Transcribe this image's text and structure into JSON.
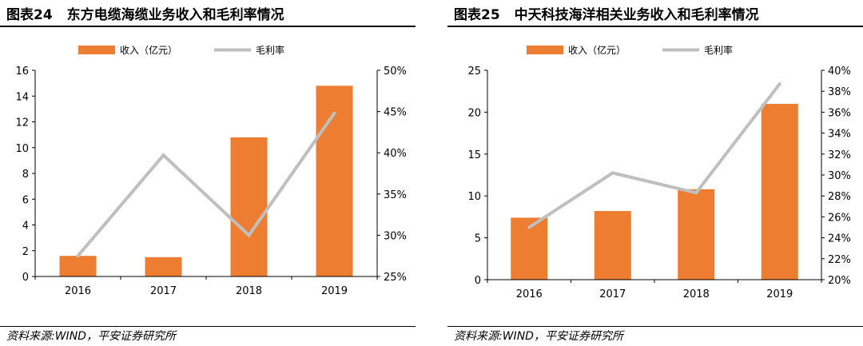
{
  "charts": [
    {
      "figure_label": "图表24",
      "title": "东方电缆海缆业务收入和毛利率情况",
      "source": "资料来源:WIND，平安证券研究所",
      "legend": {
        "bar": "收入（亿元）",
        "line": "毛利率"
      },
      "colors": {
        "bar": "#ED7D31",
        "line": "#BFBFBF"
      },
      "chart_data": {
        "type": "bar",
        "categories": [
          "2016",
          "2017",
          "2018",
          "2019"
        ],
        "series": [
          {
            "name": "收入（亿元）",
            "type": "bar",
            "axis": "left",
            "values": [
              1.6,
              1.5,
              10.8,
              14.8
            ]
          },
          {
            "name": "毛利率",
            "type": "line",
            "axis": "right",
            "values": [
              27.5,
              39.7,
              30.0,
              44.8
            ]
          }
        ],
        "ylim_left": [
          0,
          16
        ],
        "yticks_left": [
          "0",
          "2",
          "4",
          "6",
          "8",
          "10",
          "12",
          "14",
          "16"
        ],
        "ylim_right": [
          25,
          50
        ],
        "yticks_right": [
          "25%",
          "30%",
          "35%",
          "40%",
          "45%",
          "50%"
        ],
        "legend_position": "top",
        "grid": false
      }
    },
    {
      "figure_label": "图表25",
      "title": "中天科技海洋相关业务收入和毛利率情况",
      "source": "资料来源:WIND，平安证券研究所",
      "legend": {
        "bar": "收入（亿元）",
        "line": "毛利率"
      },
      "colors": {
        "bar": "#ED7D31",
        "line": "#BFBFBF"
      },
      "chart_data": {
        "type": "bar",
        "categories": [
          "2016",
          "2017",
          "2018",
          "2019"
        ],
        "series": [
          {
            "name": "收入（亿元）",
            "type": "bar",
            "axis": "left",
            "values": [
              7.4,
              8.2,
              10.8,
              21.0
            ]
          },
          {
            "name": "毛利率",
            "type": "line",
            "axis": "right",
            "values": [
              25.0,
              30.2,
              28.3,
              38.7
            ]
          }
        ],
        "ylim_left": [
          0,
          25
        ],
        "yticks_left": [
          "0",
          "5",
          "10",
          "15",
          "20",
          "25"
        ],
        "ylim_right": [
          20,
          40
        ],
        "yticks_right": [
          "20%",
          "22%",
          "24%",
          "26%",
          "28%",
          "30%",
          "32%",
          "34%",
          "36%",
          "38%",
          "40%"
        ],
        "legend_position": "top",
        "grid": false
      }
    }
  ]
}
